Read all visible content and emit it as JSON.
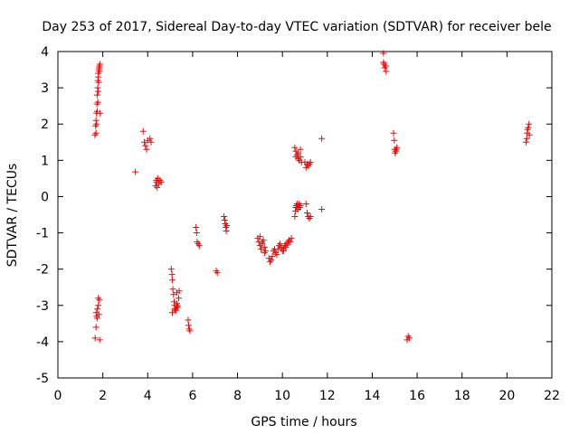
{
  "chart_data": {
    "type": "scatter",
    "title": "Day 253 of 2017, Sidereal Day-to-day VTEC variation (SDTVAR) for receiver bele",
    "xlabel": "GPS time / hours",
    "ylabel": "SDTVAR / TECUs",
    "xlim": [
      0,
      22
    ],
    "ylim": [
      -5,
      4
    ],
    "x_ticks": [
      "0",
      "2",
      "4",
      "6",
      "8",
      "10",
      "12",
      "14",
      "16",
      "18",
      "20",
      "22"
    ],
    "y_ticks": [
      "-5",
      "-4",
      "-3",
      "-2",
      "-1",
      "0",
      "1",
      "2",
      "3",
      "4"
    ],
    "marker": "plus",
    "color": "#ff0000",
    "series": [
      {
        "name": "SDTVAR",
        "x": [
          1.65,
          1.68,
          1.7,
          1.72,
          1.74,
          1.75,
          1.77,
          1.78,
          1.8,
          1.8,
          1.82,
          1.84,
          1.85,
          1.87,
          1.88,
          1.7,
          1.72,
          1.75,
          1.78,
          1.8,
          1.82,
          1.85,
          1.66,
          1.7,
          1.73,
          1.76,
          1.8,
          1.83,
          1.86,
          1.7,
          1.75,
          1.8,
          1.85,
          3.45,
          3.8,
          3.85,
          3.9,
          3.95,
          4.0,
          4.1,
          4.15,
          4.35,
          4.38,
          4.4,
          4.45,
          4.5,
          4.55,
          4.6,
          4.42,
          5.05,
          5.08,
          5.1,
          5.12,
          5.15,
          5.18,
          5.2,
          5.22,
          5.25,
          5.28,
          5.3,
          5.32,
          5.35,
          5.38,
          5.4,
          5.1,
          5.2,
          5.3,
          5.8,
          5.82,
          5.85,
          5.88,
          6.15,
          6.18,
          6.2,
          6.25,
          6.3,
          7.05,
          7.1,
          7.4,
          7.43,
          7.45,
          7.48,
          7.5,
          7.52,
          8.9,
          8.95,
          9.0,
          9.05,
          9.1,
          9.15,
          9.2,
          9.25,
          9.0,
          9.1,
          9.2,
          9.4,
          9.45,
          9.5,
          9.55,
          9.6,
          9.65,
          9.7,
          9.75,
          9.8,
          9.85,
          9.9,
          9.95,
          10.0,
          10.05,
          10.1,
          10.15,
          10.2,
          10.25,
          10.3,
          10.35,
          10.4,
          9.95,
          10.05,
          10.15,
          10.55,
          10.58,
          10.6,
          10.62,
          10.65,
          10.68,
          10.7,
          10.72,
          10.75,
          10.78,
          10.8,
          10.6,
          10.7,
          10.8,
          10.55,
          10.6,
          10.65,
          10.7,
          10.75,
          10.8,
          10.85,
          11.0,
          11.05,
          11.1,
          11.15,
          11.2,
          11.25,
          11.05,
          11.1,
          11.15,
          11.2,
          11.25,
          11.75,
          11.75,
          14.5,
          14.52,
          14.55,
          14.6,
          14.62,
          14.5,
          14.95,
          14.98,
          15.0,
          15.02,
          15.05,
          15.08,
          15.1,
          15.55,
          15.6,
          15.65,
          20.85,
          20.88,
          20.9,
          20.92,
          20.95,
          20.98,
          21.0
        ],
        "y": [
          1.7,
          1.95,
          2.1,
          2.3,
          2.55,
          2.8,
          3.0,
          3.2,
          3.3,
          3.4,
          3.5,
          3.55,
          3.6,
          3.65,
          2.3,
          1.75,
          2.0,
          2.35,
          2.6,
          2.9,
          3.15,
          3.45,
          -3.9,
          -3.6,
          -3.3,
          -3.1,
          -2.8,
          -3.25,
          -3.95,
          -3.2,
          -3.35,
          -3.0,
          -2.85,
          0.68,
          1.8,
          1.5,
          1.4,
          1.3,
          1.55,
          1.6,
          1.5,
          0.3,
          0.45,
          0.4,
          0.5,
          0.35,
          0.45,
          0.4,
          0.25,
          -2.0,
          -2.15,
          -2.3,
          -2.55,
          -2.7,
          -2.9,
          -3.0,
          -3.1,
          -3.15,
          -3.05,
          -2.95,
          -3.0,
          -3.05,
          -2.8,
          -2.6,
          -3.2,
          -3.1,
          -2.65,
          -3.4,
          -3.55,
          -3.65,
          -3.7,
          -0.85,
          -1.0,
          -1.25,
          -1.3,
          -1.35,
          -2.05,
          -2.1,
          -0.55,
          -0.65,
          -0.75,
          -0.85,
          -0.95,
          -0.8,
          -1.15,
          -1.25,
          -1.35,
          -1.45,
          -1.3,
          -1.2,
          -1.4,
          -1.5,
          -1.1,
          -1.25,
          -1.55,
          -1.7,
          -1.8,
          -1.75,
          -1.65,
          -1.5,
          -1.45,
          -1.55,
          -1.6,
          -1.45,
          -1.35,
          -1.3,
          -1.4,
          -1.5,
          -1.45,
          -1.35,
          -1.4,
          -1.3,
          -1.25,
          -1.2,
          -1.25,
          -1.15,
          -1.4,
          -1.5,
          -1.35,
          -0.55,
          -0.4,
          -0.3,
          -0.25,
          -0.2,
          -0.3,
          -0.35,
          -0.25,
          -0.2,
          -0.3,
          -0.25,
          1.1,
          1.2,
          1.3,
          1.35,
          1.25,
          1.15,
          1.05,
          1.0,
          1.1,
          0.95,
          0.95,
          0.8,
          0.9,
          0.85,
          0.9,
          0.95,
          -0.2,
          -0.45,
          -0.55,
          -0.6,
          -0.55,
          1.6,
          -0.35,
          3.95,
          3.65,
          3.55,
          3.6,
          3.45,
          3.7,
          1.75,
          1.55,
          1.3,
          1.2,
          1.25,
          1.3,
          1.35,
          -3.95,
          -3.85,
          -3.9,
          1.5,
          1.6,
          1.75,
          1.85,
          1.9,
          2.0,
          1.7
        ]
      }
    ]
  }
}
